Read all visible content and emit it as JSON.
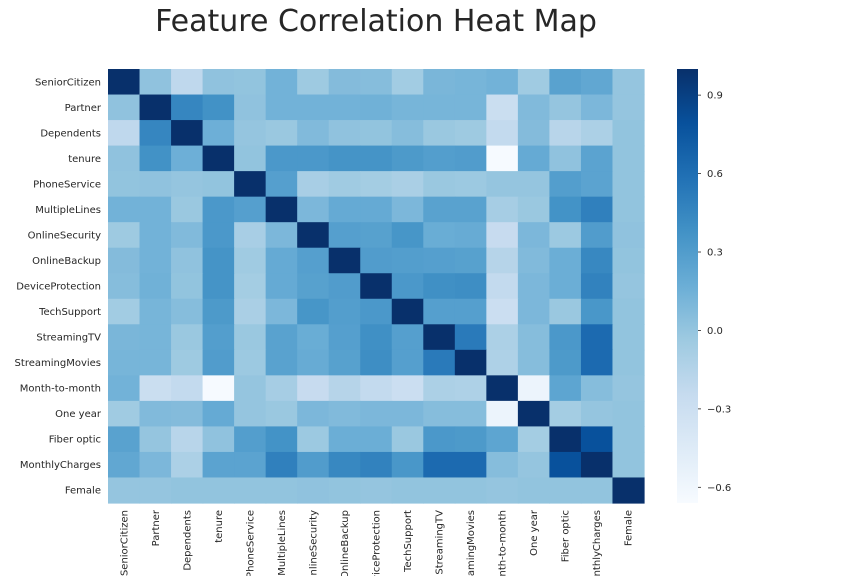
{
  "chart_data": {
    "type": "heatmap",
    "title": "Feature Correlation Heat Map",
    "colormap": [
      "#f7fbff",
      "#deebf7",
      "#c6dbef",
      "#9ecae1",
      "#6baed6",
      "#4292c6",
      "#2171b5",
      "#08519c",
      "#08306b"
    ],
    "vmin": -0.66,
    "vmax": 1.0,
    "colorbar_ticks": [
      0.9,
      0.6,
      0.3,
      0.0,
      -0.3,
      -0.6
    ],
    "colorbar_tick_labels": [
      "0.9",
      "0.6",
      "0.3",
      "0.0",
      "−0.3",
      "−0.6"
    ],
    "features": [
      "SeniorCitizen",
      "Partner",
      "Dependents",
      "tenure",
      "PhoneService",
      "MultipleLines",
      "OnlineSecurity",
      "OnlineBackup",
      "DeviceProtection",
      "TechSupport",
      "StreamingTV",
      "StreamingMovies",
      "Month-to-month",
      "One year",
      "Fiber optic",
      "MonthlyCharges",
      "Female"
    ],
    "x_tick_labels": [
      "SeniorCitizen",
      "Partner",
      "Dependents",
      "tenure",
      "PhoneService",
      "MultipleLines",
      "OnlineSecurity",
      "OnlineBackup",
      "DeviceProtection",
      "TechSupport",
      "StreamingTV",
      "StreamingMovies",
      "Month-to-month",
      "One year",
      "Fiber optic",
      "MonthlyCharges",
      "Female"
    ],
    "matrix": [
      [
        1.0,
        0.02,
        -0.21,
        0.02,
        0.01,
        0.14,
        -0.04,
        0.07,
        0.06,
        -0.06,
        0.11,
        0.12,
        0.14,
        -0.05,
        0.26,
        0.22,
        0.0
      ],
      [
        0.02,
        1.0,
        0.45,
        0.38,
        0.02,
        0.14,
        0.14,
        0.14,
        0.15,
        0.12,
        0.12,
        0.12,
        -0.28,
        0.08,
        0.0,
        0.1,
        0.0
      ],
      [
        -0.21,
        0.45,
        1.0,
        0.16,
        0.0,
        -0.02,
        0.08,
        0.02,
        0.01,
        0.06,
        -0.02,
        -0.04,
        -0.23,
        0.07,
        -0.17,
        -0.11,
        0.01
      ],
      [
        0.02,
        0.38,
        0.16,
        1.0,
        0.01,
        0.33,
        0.33,
        0.36,
        0.36,
        0.32,
        0.29,
        0.3,
        -0.65,
        0.2,
        0.02,
        0.25,
        0.01
      ],
      [
        0.01,
        0.02,
        0.0,
        0.01,
        1.0,
        0.28,
        -0.09,
        -0.05,
        -0.07,
        -0.1,
        -0.02,
        -0.03,
        0.0,
        0.0,
        0.29,
        0.25,
        0.01
      ],
      [
        0.14,
        0.14,
        -0.02,
        0.33,
        0.28,
        1.0,
        0.1,
        0.2,
        0.2,
        0.1,
        0.26,
        0.26,
        -0.08,
        -0.02,
        0.37,
        0.49,
        0.01
      ],
      [
        -0.04,
        0.14,
        0.08,
        0.33,
        -0.09,
        0.1,
        1.0,
        0.28,
        0.27,
        0.35,
        0.18,
        0.19,
        -0.25,
        0.1,
        -0.03,
        0.3,
        0.02
      ],
      [
        0.07,
        0.14,
        0.02,
        0.36,
        -0.05,
        0.2,
        0.28,
        1.0,
        0.3,
        0.29,
        0.28,
        0.27,
        -0.16,
        0.08,
        0.17,
        0.44,
        0.01
      ],
      [
        0.06,
        0.15,
        0.01,
        0.36,
        -0.07,
        0.2,
        0.27,
        0.3,
        1.0,
        0.33,
        0.39,
        0.4,
        -0.23,
        0.1,
        0.17,
        0.48,
        0.0
      ],
      [
        -0.06,
        0.12,
        0.06,
        0.32,
        -0.1,
        0.1,
        0.35,
        0.29,
        0.33,
        1.0,
        0.28,
        0.28,
        -0.29,
        0.1,
        -0.02,
        0.34,
        0.01
      ],
      [
        0.11,
        0.12,
        -0.02,
        0.29,
        -0.02,
        0.26,
        0.18,
        0.28,
        0.39,
        0.28,
        1.0,
        0.53,
        -0.11,
        0.06,
        0.33,
        0.63,
        0.01
      ],
      [
        0.12,
        0.12,
        -0.04,
        0.3,
        -0.03,
        0.26,
        0.19,
        0.27,
        0.4,
        0.28,
        0.53,
        1.0,
        -0.12,
        0.06,
        0.32,
        0.63,
        0.01
      ],
      [
        0.14,
        -0.28,
        -0.23,
        -0.65,
        0.0,
        -0.08,
        -0.25,
        -0.16,
        -0.23,
        -0.29,
        -0.11,
        -0.12,
        1.0,
        -0.57,
        0.24,
        0.06,
        0.0
      ],
      [
        -0.05,
        0.08,
        0.07,
        0.2,
        0.0,
        -0.02,
        0.1,
        0.08,
        0.1,
        0.1,
        0.06,
        0.06,
        -0.57,
        1.0,
        -0.07,
        0.0,
        0.01
      ],
      [
        0.26,
        0.0,
        -0.17,
        0.02,
        0.29,
        0.37,
        -0.03,
        0.17,
        0.17,
        -0.02,
        0.33,
        0.32,
        0.24,
        -0.07,
        1.0,
        0.79,
        0.01
      ],
      [
        0.22,
        0.1,
        -0.11,
        0.25,
        0.25,
        0.49,
        0.3,
        0.44,
        0.48,
        0.34,
        0.63,
        0.63,
        0.06,
        0.0,
        0.79,
        1.0,
        0.01
      ],
      [
        0.0,
        0.0,
        0.01,
        0.01,
        0.01,
        0.01,
        0.02,
        0.01,
        0.0,
        0.01,
        0.01,
        0.01,
        0.0,
        0.01,
        0.01,
        0.01,
        1.0
      ]
    ]
  }
}
